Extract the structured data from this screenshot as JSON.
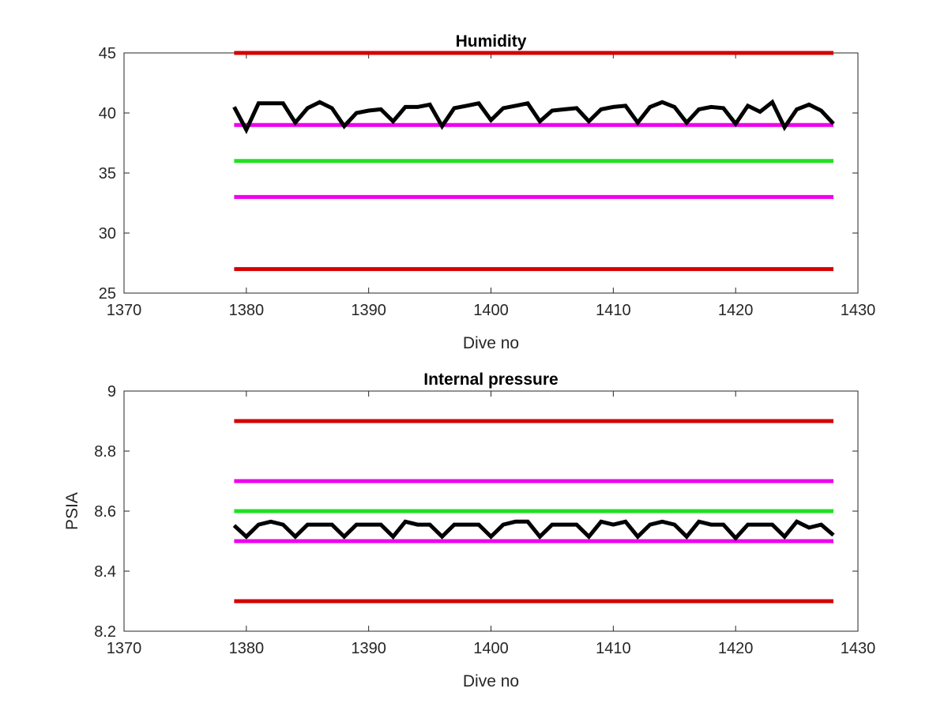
{
  "chart_data": [
    {
      "type": "line",
      "title": "Humidity",
      "xlabel": "Dive no",
      "ylabel": "",
      "xlim": [
        1370,
        1430
      ],
      "ylim": [
        25,
        45
      ],
      "xticks": [
        "1370",
        "1380",
        "1390",
        "1400",
        "1410",
        "1420",
        "1430"
      ],
      "yticks": [
        "25",
        "30",
        "35",
        "40",
        "45"
      ],
      "grid": false,
      "series": [
        {
          "color": "#d40000",
          "x": [
            1379,
            1428
          ],
          "y": [
            45,
            45
          ]
        },
        {
          "color": "#ee00ee",
          "x": [
            1379,
            1428
          ],
          "y": [
            39,
            39
          ]
        },
        {
          "color": "#22e022",
          "x": [
            1379,
            1428
          ],
          "y": [
            36,
            36
          ]
        },
        {
          "color": "#ee00ee",
          "x": [
            1379,
            1428
          ],
          "y": [
            33,
            33
          ]
        },
        {
          "color": "#d40000",
          "x": [
            1379,
            1428
          ],
          "y": [
            27,
            27
          ]
        },
        {
          "color": "#000000",
          "x": [
            1379,
            1380,
            1381,
            1382,
            1383,
            1384,
            1385,
            1386,
            1387,
            1388,
            1389,
            1390,
            1391,
            1392,
            1393,
            1394,
            1395,
            1396,
            1397,
            1398,
            1399,
            1400,
            1401,
            1402,
            1403,
            1404,
            1405,
            1406,
            1407,
            1408,
            1409,
            1410,
            1411,
            1412,
            1413,
            1414,
            1415,
            1416,
            1417,
            1418,
            1419,
            1420,
            1421,
            1422,
            1423,
            1424,
            1425,
            1426,
            1427,
            1428
          ],
          "y": [
            40.5,
            38.6,
            40.8,
            40.8,
            40.8,
            39.2,
            40.4,
            40.9,
            40.4,
            38.9,
            40.0,
            40.2,
            40.3,
            39.3,
            40.5,
            40.5,
            40.7,
            38.9,
            40.4,
            40.6,
            40.8,
            39.4,
            40.4,
            40.6,
            40.8,
            39.3,
            40.2,
            40.3,
            40.4,
            39.3,
            40.3,
            40.5,
            40.6,
            39.2,
            40.5,
            40.9,
            40.5,
            39.2,
            40.3,
            40.5,
            40.4,
            39.1,
            40.6,
            40.1,
            40.9,
            38.8,
            40.3,
            40.7,
            40.2,
            39.1
          ]
        }
      ]
    },
    {
      "type": "line",
      "title": "Internal pressure",
      "xlabel": "Dive no",
      "ylabel": "PSIA",
      "xlim": [
        1370,
        1430
      ],
      "ylim": [
        8.2,
        9.0
      ],
      "xticks": [
        "1370",
        "1380",
        "1390",
        "1400",
        "1410",
        "1420",
        "1430"
      ],
      "yticks": [
        "8.2",
        "8.4",
        "8.6",
        "8.8",
        "9"
      ],
      "grid": false,
      "series": [
        {
          "color": "#d40000",
          "x": [
            1379,
            1428
          ],
          "y": [
            8.9,
            8.9
          ]
        },
        {
          "color": "#ee00ee",
          "x": [
            1379,
            1428
          ],
          "y": [
            8.7,
            8.7
          ]
        },
        {
          "color": "#22e022",
          "x": [
            1379,
            1428
          ],
          "y": [
            8.6,
            8.6
          ]
        },
        {
          "color": "#ee00ee",
          "x": [
            1379,
            1428
          ],
          "y": [
            8.5,
            8.5
          ]
        },
        {
          "color": "#d40000",
          "x": [
            1379,
            1428
          ],
          "y": [
            8.3,
            8.3
          ]
        },
        {
          "color": "#000000",
          "x": [
            1379,
            1380,
            1381,
            1382,
            1383,
            1384,
            1385,
            1386,
            1387,
            1388,
            1389,
            1390,
            1391,
            1392,
            1393,
            1394,
            1395,
            1396,
            1397,
            1398,
            1399,
            1400,
            1401,
            1402,
            1403,
            1404,
            1405,
            1406,
            1407,
            1408,
            1409,
            1410,
            1411,
            1412,
            1413,
            1414,
            1415,
            1416,
            1417,
            1418,
            1419,
            1420,
            1421,
            1422,
            1423,
            1424,
            1425,
            1426,
            1427,
            1428
          ],
          "y": [
            8.552,
            8.515,
            8.555,
            8.565,
            8.555,
            8.515,
            8.555,
            8.555,
            8.555,
            8.515,
            8.555,
            8.555,
            8.555,
            8.515,
            8.565,
            8.555,
            8.555,
            8.515,
            8.555,
            8.555,
            8.555,
            8.515,
            8.555,
            8.565,
            8.565,
            8.515,
            8.555,
            8.555,
            8.555,
            8.515,
            8.565,
            8.555,
            8.565,
            8.515,
            8.555,
            8.565,
            8.555,
            8.515,
            8.565,
            8.555,
            8.555,
            8.51,
            8.555,
            8.555,
            8.555,
            8.515,
            8.565,
            8.545,
            8.555,
            8.52
          ]
        }
      ]
    }
  ]
}
